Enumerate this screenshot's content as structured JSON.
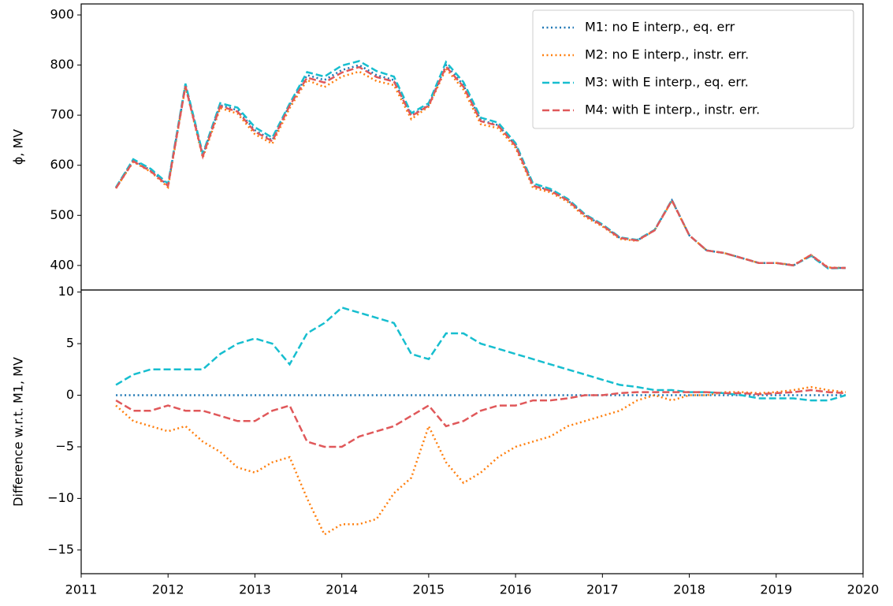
{
  "chart_data": [
    {
      "type": "line",
      "ylabel": "ϕ, MV",
      "x": [
        2011.4,
        2011.6,
        2011.8,
        2012.0,
        2012.2,
        2012.4,
        2012.6,
        2012.8,
        2013.0,
        2013.2,
        2013.4,
        2013.6,
        2013.8,
        2014.0,
        2014.2,
        2014.4,
        2014.6,
        2014.8,
        2015.0,
        2015.2,
        2015.4,
        2015.6,
        2015.8,
        2016.0,
        2016.2,
        2016.4,
        2016.6,
        2016.8,
        2017.0,
        2017.2,
        2017.4,
        2017.6,
        2017.8,
        2018.0,
        2018.2,
        2018.4,
        2018.6,
        2018.8,
        2019.0,
        2019.2,
        2019.4,
        2019.6,
        2019.8
      ],
      "xlim": [
        2011,
        2020
      ],
      "ylim": [
        351,
        922
      ],
      "yticks": [
        400,
        500,
        600,
        700,
        800,
        900
      ],
      "legend": "upper right",
      "series": [
        {
          "name": "M1: no E interp., eq. err",
          "color": "#1f77b4",
          "linestyle": "dotted",
          "values": [
            555,
            610,
            590,
            560,
            760,
            620,
            720,
            710,
            670,
            650,
            720,
            780,
            770,
            790,
            800,
            780,
            770,
            700,
            720,
            800,
            760,
            690,
            680,
            640,
            560,
            550,
            530,
            500,
            480,
            455,
            450,
            470,
            530,
            460,
            430,
            425,
            415,
            405,
            405,
            400,
            420,
            395,
            395
          ]
        },
        {
          "name": "M2: no E interp., instr. err.",
          "color": "#ff7f0e",
          "linestyle": "dotted",
          "values": [
            554,
            607,
            587,
            556,
            757,
            615,
            714,
            703,
            662,
            643,
            714,
            770,
            756,
            777,
            787,
            768,
            760,
            692,
            717,
            793,
            751,
            682,
            674,
            635,
            555,
            546,
            527,
            497,
            478,
            453,
            449,
            470,
            529,
            460,
            430,
            425,
            415,
            405,
            405,
            401,
            421,
            396,
            395
          ]
        },
        {
          "name": "M3: with E interp., eq. err.",
          "color": "#17becf",
          "linestyle": "dashed",
          "values": [
            556,
            612,
            593,
            563,
            763,
            623,
            724,
            715,
            676,
            655,
            723,
            786,
            777,
            799,
            808,
            788,
            777,
            704,
            724,
            806,
            766,
            695,
            685,
            644,
            564,
            553,
            533,
            502,
            482,
            456,
            451,
            471,
            531,
            460,
            430,
            425,
            415,
            405,
            405,
            400,
            419,
            394,
            395
          ]
        },
        {
          "name": "M4: with E interp., instr. err.",
          "color": "#e0585a",
          "linestyle": "dashed",
          "values": [
            554,
            608,
            588,
            559,
            758,
            618,
            718,
            707,
            667,
            648,
            719,
            775,
            765,
            785,
            796,
            776,
            767,
            698,
            719,
            797,
            757,
            688,
            679,
            639,
            559,
            549,
            530,
            500,
            480,
            455,
            450,
            470,
            530,
            460,
            430,
            425,
            415,
            405,
            405,
            400,
            421,
            395,
            395
          ]
        }
      ]
    },
    {
      "type": "line",
      "ylabel": "Difference w.r.t. M1, MV",
      "x": [
        2011.4,
        2011.6,
        2011.8,
        2012.0,
        2012.2,
        2012.4,
        2012.6,
        2012.8,
        2013.0,
        2013.2,
        2013.4,
        2013.6,
        2013.8,
        2014.0,
        2014.2,
        2014.4,
        2014.6,
        2014.8,
        2015.0,
        2015.2,
        2015.4,
        2015.6,
        2015.8,
        2016.0,
        2016.2,
        2016.4,
        2016.6,
        2016.8,
        2017.0,
        2017.2,
        2017.4,
        2017.6,
        2017.8,
        2018.0,
        2018.2,
        2018.4,
        2018.6,
        2018.8,
        2019.0,
        2019.2,
        2019.4,
        2019.6,
        2019.8
      ],
      "xlim": [
        2011,
        2020
      ],
      "xticks": [
        2011,
        2012,
        2013,
        2014,
        2015,
        2016,
        2017,
        2018,
        2019,
        2020
      ],
      "ylim": [
        -17.3,
        10.2
      ],
      "yticks": [
        {
          "value": -15,
          "label": "−15"
        },
        {
          "value": -10,
          "label": "−10"
        },
        {
          "value": -5,
          "label": "−5"
        },
        0,
        5,
        10
      ],
      "series": [
        {
          "color": "#1f77b4",
          "linestyle": "dotted",
          "values": [
            0,
            0,
            0,
            0,
            0,
            0,
            0,
            0,
            0,
            0,
            0,
            0,
            0,
            0,
            0,
            0,
            0,
            0,
            0,
            0,
            0,
            0,
            0,
            0,
            0,
            0,
            0,
            0,
            0,
            0,
            0,
            0,
            0,
            0,
            0,
            0,
            0,
            0,
            0,
            0,
            0,
            0,
            0
          ]
        },
        {
          "color": "#ff7f0e",
          "linestyle": "dotted",
          "values": [
            -1,
            -2.5,
            -3,
            -3.5,
            -3,
            -4.5,
            -5.5,
            -7,
            -7.5,
            -6.5,
            -6,
            -10,
            -13.5,
            -12.5,
            -12.5,
            -12,
            -9.5,
            -8,
            -3,
            -6.5,
            -8.5,
            -7.5,
            -6,
            -5,
            -4.5,
            -4,
            -3,
            -2.5,
            -2,
            -1.5,
            -0.5,
            0,
            -0.5,
            0,
            0,
            0.3,
            0.3,
            0.2,
            0.3,
            0.5,
            0.8,
            0.5,
            0.3
          ]
        },
        {
          "color": "#17becf",
          "linestyle": "dashed",
          "values": [
            1,
            2,
            2.5,
            2.5,
            2.5,
            2.5,
            4,
            5,
            5.5,
            5,
            3,
            6,
            7,
            8.5,
            8,
            7.5,
            7,
            4,
            3.5,
            6,
            6,
            5,
            4.5,
            4,
            3.5,
            3,
            2.5,
            2,
            1.5,
            1,
            0.8,
            0.5,
            0.5,
            0.3,
            0.3,
            0.2,
            0,
            -0.3,
            -0.3,
            -0.3,
            -0.5,
            -0.5,
            0
          ]
        },
        {
          "color": "#e0585a",
          "linestyle": "dashed",
          "values": [
            -0.5,
            -1.5,
            -1.5,
            -1,
            -1.5,
            -1.5,
            -2,
            -2.5,
            -2.5,
            -1.5,
            -1,
            -4.5,
            -5,
            -5,
            -4,
            -3.5,
            -3,
            -2,
            -1,
            -3,
            -2.5,
            -1.5,
            -1,
            -1,
            -0.5,
            -0.5,
            -0.3,
            0,
            0,
            0.2,
            0.3,
            0.3,
            0.3,
            0.3,
            0.3,
            0.2,
            0.2,
            0.1,
            0.2,
            0.3,
            0.5,
            0.3,
            0.2
          ]
        }
      ]
    }
  ]
}
